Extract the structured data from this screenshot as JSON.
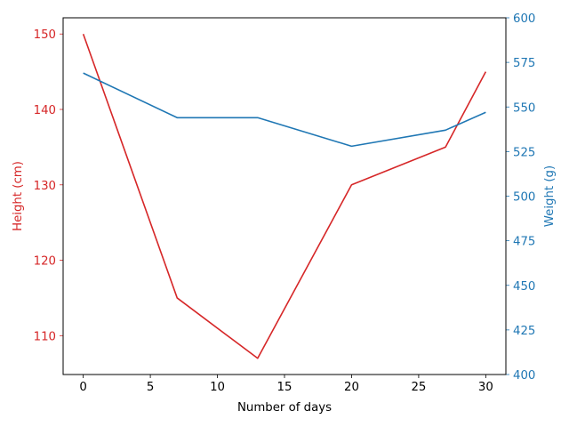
{
  "chart_data": {
    "type": "line",
    "xlabel": "Number of days",
    "x": [
      0,
      7,
      13,
      20,
      27,
      30
    ],
    "xlim": [
      -1.5,
      31.5
    ],
    "xticks": [
      0,
      5,
      10,
      15,
      20,
      25,
      30
    ],
    "series": [
      {
        "axis": "left",
        "color": "#d62728",
        "values": [
          150,
          115,
          107,
          130,
          135,
          145
        ]
      },
      {
        "axis": "right",
        "color": "#1f77b4",
        "values": [
          569,
          544,
          544,
          528,
          537,
          547
        ]
      }
    ],
    "y_left": {
      "label": "Height (cm)",
      "color": "#d62728",
      "lim": [
        104.85,
        152.15
      ],
      "ticks": [
        110,
        120,
        130,
        140,
        150
      ]
    },
    "y_right": {
      "label": "Weight (g)",
      "color": "#1f77b4",
      "lim": [
        400,
        600
      ],
      "ticks": [
        400,
        425,
        450,
        475,
        500,
        525,
        550,
        575,
        600
      ]
    },
    "grid": false
  }
}
